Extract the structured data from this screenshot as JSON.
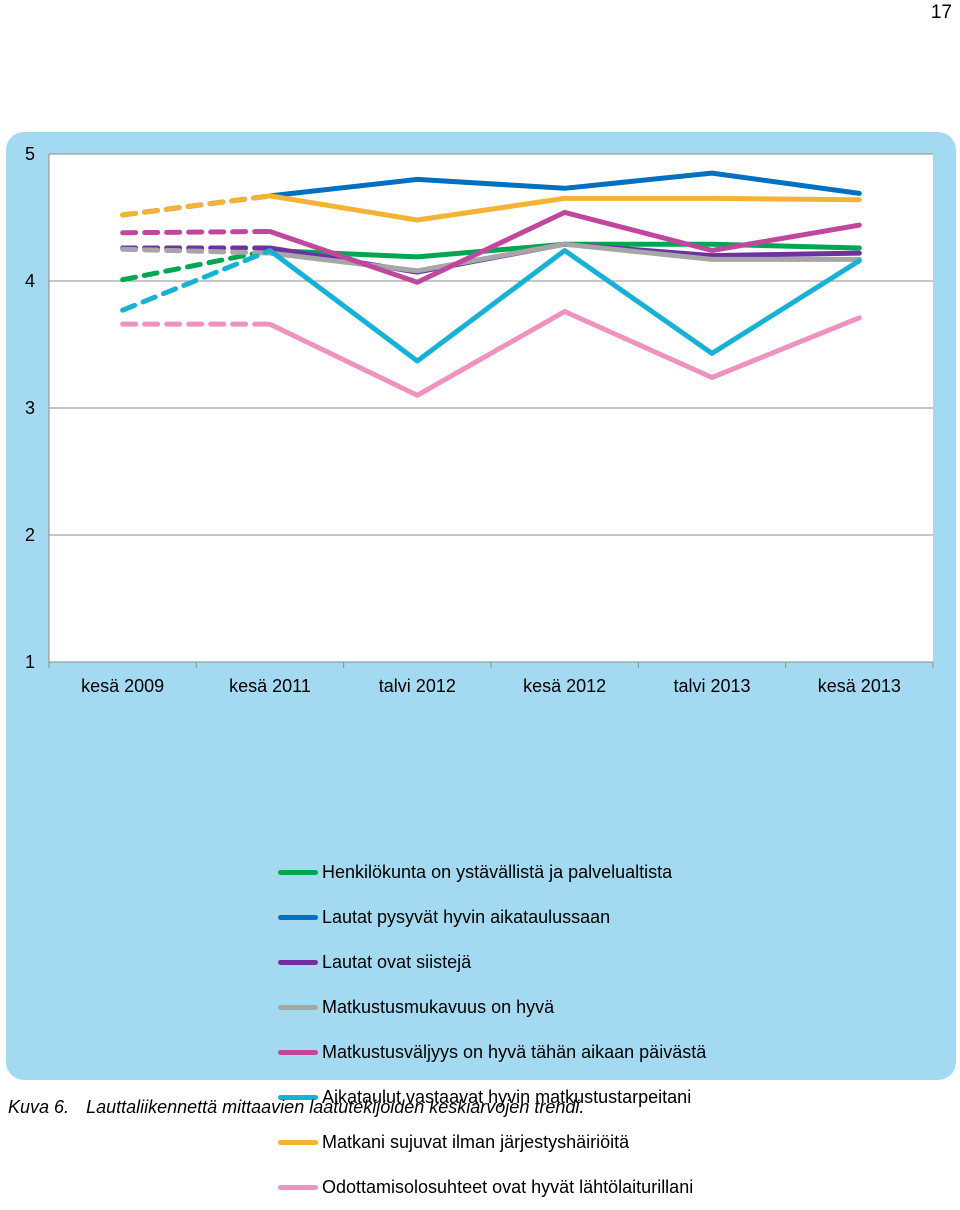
{
  "page": {
    "number": "17"
  },
  "caption": {
    "label": "Kuva 6.",
    "text": "Lauttaliikennettä mittaavien laatutekijöiden keskiarvojen trendi."
  },
  "chart_data": {
    "type": "line",
    "categories": [
      "kesä 2009",
      "kesä 2011",
      "talvi 2012",
      "kesä 2012",
      "talvi 2013",
      "kesä 2013"
    ],
    "ylim": [
      1,
      5
    ],
    "yticks": [
      "1",
      "2",
      "3",
      "4",
      "5"
    ],
    "grid": true,
    "legend_position": "bottom",
    "dashed_segment": "kesä 2009 – kesä 2011",
    "series": [
      {
        "name": "Henkilökunta on ystävällistä ja palvelualtista",
        "color": "#00a651",
        "values": [
          4.01,
          4.24,
          4.19,
          4.29,
          4.29,
          4.26
        ]
      },
      {
        "name": "Lautat pysyvät hyvin aikataulussaan",
        "color": "#0070c0",
        "values": [
          4.52,
          4.67,
          4.8,
          4.73,
          4.85,
          4.69
        ]
      },
      {
        "name": "Lautat ovat siistejä",
        "color": "#7030a0",
        "values": [
          4.26,
          4.26,
          4.07,
          4.29,
          4.2,
          4.22
        ]
      },
      {
        "name": "Matkustusmukavuus on hyvä",
        "color": "#a6a6a6",
        "values": [
          4.25,
          4.22,
          4.08,
          4.29,
          4.17,
          4.17
        ]
      },
      {
        "name": "Matkustusväljyys on hyvä tähän aikaan päivästä",
        "color": "#c0479e",
        "values": [
          4.38,
          4.39,
          3.99,
          4.54,
          4.24,
          4.44
        ]
      },
      {
        "name": "Aikataulut vastaavat hyvin matkustustarpeitani",
        "color": "#17b1d6",
        "values": [
          3.77,
          4.24,
          3.37,
          4.24,
          3.43,
          4.16
        ]
      },
      {
        "name": "Matkani sujuvat ilman järjestyshäiriöitä",
        "color": "#f5b335",
        "values": [
          4.52,
          4.67,
          4.48,
          4.65,
          4.65,
          4.64
        ]
      },
      {
        "name": "Odottamisolosuhteet ovat hyvät lähtölaiturillani",
        "color": "#f092c0",
        "values": [
          3.66,
          3.66,
          3.1,
          3.76,
          3.24,
          3.71
        ]
      }
    ]
  }
}
